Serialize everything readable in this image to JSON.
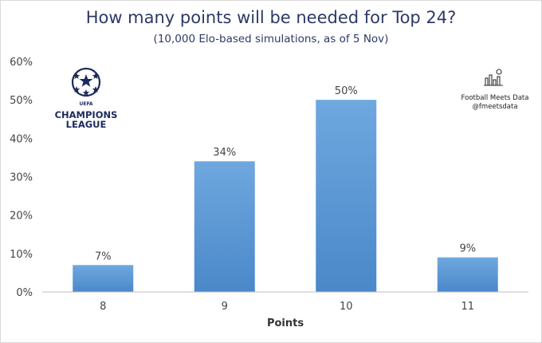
{
  "chart_data": {
    "type": "bar",
    "title": "How many points will be needed for Top 24?",
    "subtitle": "(10,000 Elo-based simulations, as of 5 Nov)",
    "xlabel": "Points",
    "ylabel": "",
    "categories": [
      "8",
      "9",
      "10",
      "11"
    ],
    "values": [
      7,
      34,
      50,
      9
    ],
    "value_labels": [
      "7%",
      "34%",
      "50%",
      "9%"
    ],
    "y_ticks": [
      "0%",
      "10%",
      "20%",
      "30%",
      "40%",
      "50%",
      "60%"
    ],
    "ylim": [
      0,
      60
    ],
    "grid": false,
    "bar_color": "#5b9bd5"
  },
  "logo": {
    "lines": [
      "UEFA",
      "CHAMPIONS",
      "LEAGUE"
    ]
  },
  "brand": {
    "name": "Football Meets Data",
    "handle": "@fmeetsdata"
  }
}
